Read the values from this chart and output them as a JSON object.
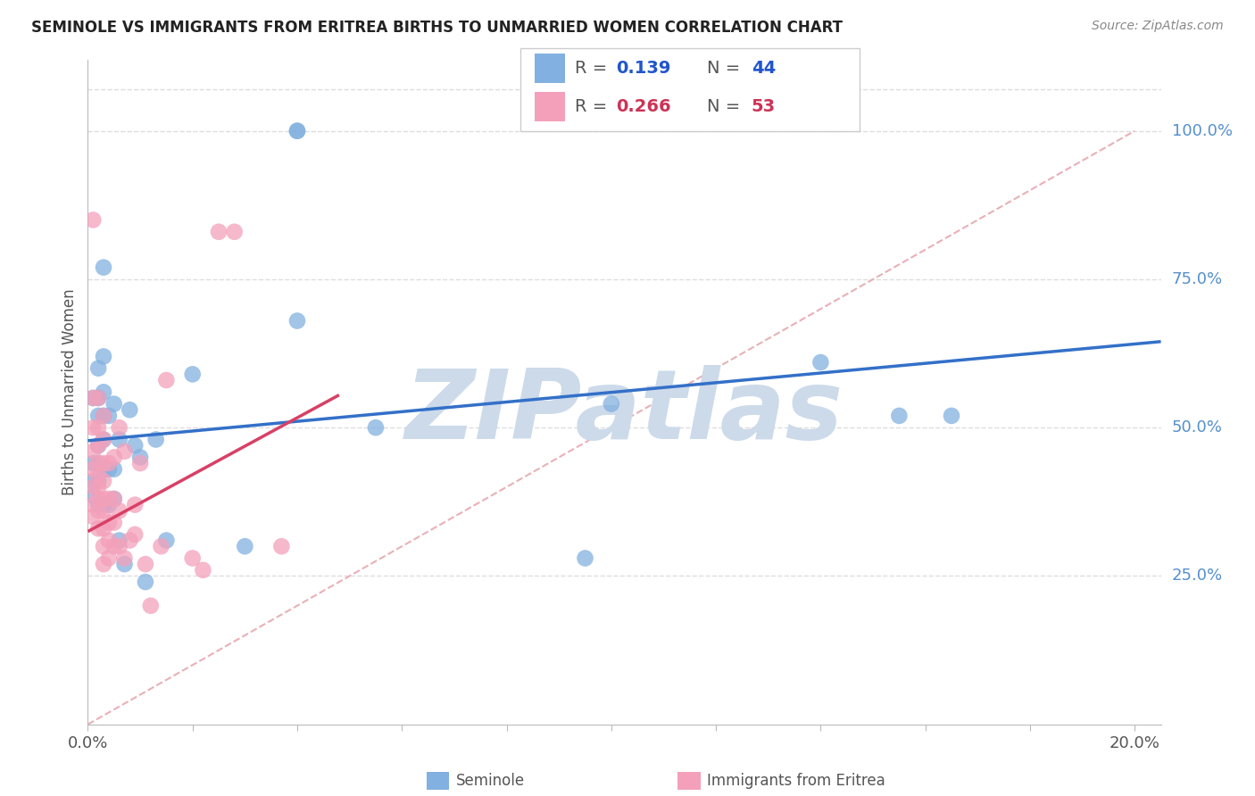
{
  "title": "SEMINOLE VS IMMIGRANTS FROM ERITREA BIRTHS TO UNMARRIED WOMEN CORRELATION CHART",
  "source": "Source: ZipAtlas.com",
  "ylabel": "Births to Unmarried Women",
  "xlim": [
    0.0,
    0.205
  ],
  "ylim": [
    0.0,
    1.12
  ],
  "xtick_positions": [
    0.0,
    0.02,
    0.04,
    0.06,
    0.08,
    0.1,
    0.12,
    0.14,
    0.16,
    0.18,
    0.2
  ],
  "yticks_right": [
    0.25,
    0.5,
    0.75,
    1.0
  ],
  "yticklabels_right": [
    "25.0%",
    "50.0%",
    "75.0%",
    "100.0%"
  ],
  "blue_color": "#82b0e0",
  "pink_color": "#f4a0ba",
  "blue_line_color": "#3370c8",
  "pink_line_color": "#d84065",
  "diag_color": "#ccbbbb",
  "watermark": "ZIPatlas",
  "watermark_color": "#ccdaea",
  "background_color": "#ffffff",
  "grid_color": "#dddddd",
  "blue_scatter_x": [
    0.001,
    0.001,
    0.001,
    0.001,
    0.002,
    0.002,
    0.002,
    0.002,
    0.002,
    0.002,
    0.002,
    0.003,
    0.003,
    0.003,
    0.003,
    0.003,
    0.003,
    0.003,
    0.004,
    0.004,
    0.004,
    0.005,
    0.005,
    0.005,
    0.006,
    0.006,
    0.007,
    0.008,
    0.009,
    0.01,
    0.011,
    0.013,
    0.015,
    0.02,
    0.03,
    0.04,
    0.04,
    0.04,
    0.055,
    0.095,
    0.1,
    0.14,
    0.155,
    0.165
  ],
  "blue_scatter_y": [
    0.385,
    0.41,
    0.44,
    0.55,
    0.37,
    0.41,
    0.44,
    0.47,
    0.52,
    0.55,
    0.6,
    0.37,
    0.43,
    0.48,
    0.52,
    0.56,
    0.62,
    0.77,
    0.37,
    0.43,
    0.52,
    0.38,
    0.43,
    0.54,
    0.31,
    0.48,
    0.27,
    0.53,
    0.47,
    0.45,
    0.24,
    0.48,
    0.31,
    0.59,
    0.3,
    0.68,
    1.0,
    1.0,
    0.5,
    0.28,
    0.54,
    0.61,
    0.52,
    0.52
  ],
  "pink_scatter_x": [
    0.001,
    0.001,
    0.001,
    0.001,
    0.001,
    0.001,
    0.001,
    0.001,
    0.002,
    0.002,
    0.002,
    0.002,
    0.002,
    0.002,
    0.002,
    0.002,
    0.002,
    0.003,
    0.003,
    0.003,
    0.003,
    0.003,
    0.003,
    0.003,
    0.003,
    0.003,
    0.004,
    0.004,
    0.004,
    0.004,
    0.004,
    0.005,
    0.005,
    0.005,
    0.005,
    0.006,
    0.006,
    0.006,
    0.007,
    0.007,
    0.008,
    0.009,
    0.009,
    0.01,
    0.011,
    0.012,
    0.014,
    0.015,
    0.02,
    0.022,
    0.025,
    0.028,
    0.037
  ],
  "pink_scatter_y": [
    0.35,
    0.37,
    0.4,
    0.43,
    0.46,
    0.5,
    0.55,
    0.85,
    0.33,
    0.36,
    0.38,
    0.4,
    0.42,
    0.44,
    0.47,
    0.5,
    0.55,
    0.27,
    0.3,
    0.33,
    0.36,
    0.38,
    0.41,
    0.44,
    0.48,
    0.52,
    0.28,
    0.31,
    0.34,
    0.38,
    0.44,
    0.3,
    0.34,
    0.38,
    0.45,
    0.3,
    0.36,
    0.5,
    0.28,
    0.46,
    0.31,
    0.32,
    0.37,
    0.44,
    0.27,
    0.2,
    0.3,
    0.58,
    0.28,
    0.26,
    0.83,
    0.83,
    0.3
  ],
  "legend_blue_Rval": "0.139",
  "legend_blue_Nval": "44",
  "legend_pink_Rval": "0.266",
  "legend_pink_Nval": "53",
  "blue_trend_x0": 0.0,
  "blue_trend_x1": 0.205,
  "blue_trend_y0": 0.478,
  "blue_trend_y1": 0.645,
  "pink_trend_x0": 0.0,
  "pink_trend_x1": 0.048,
  "pink_trend_y0": 0.325,
  "pink_trend_y1": 0.555
}
